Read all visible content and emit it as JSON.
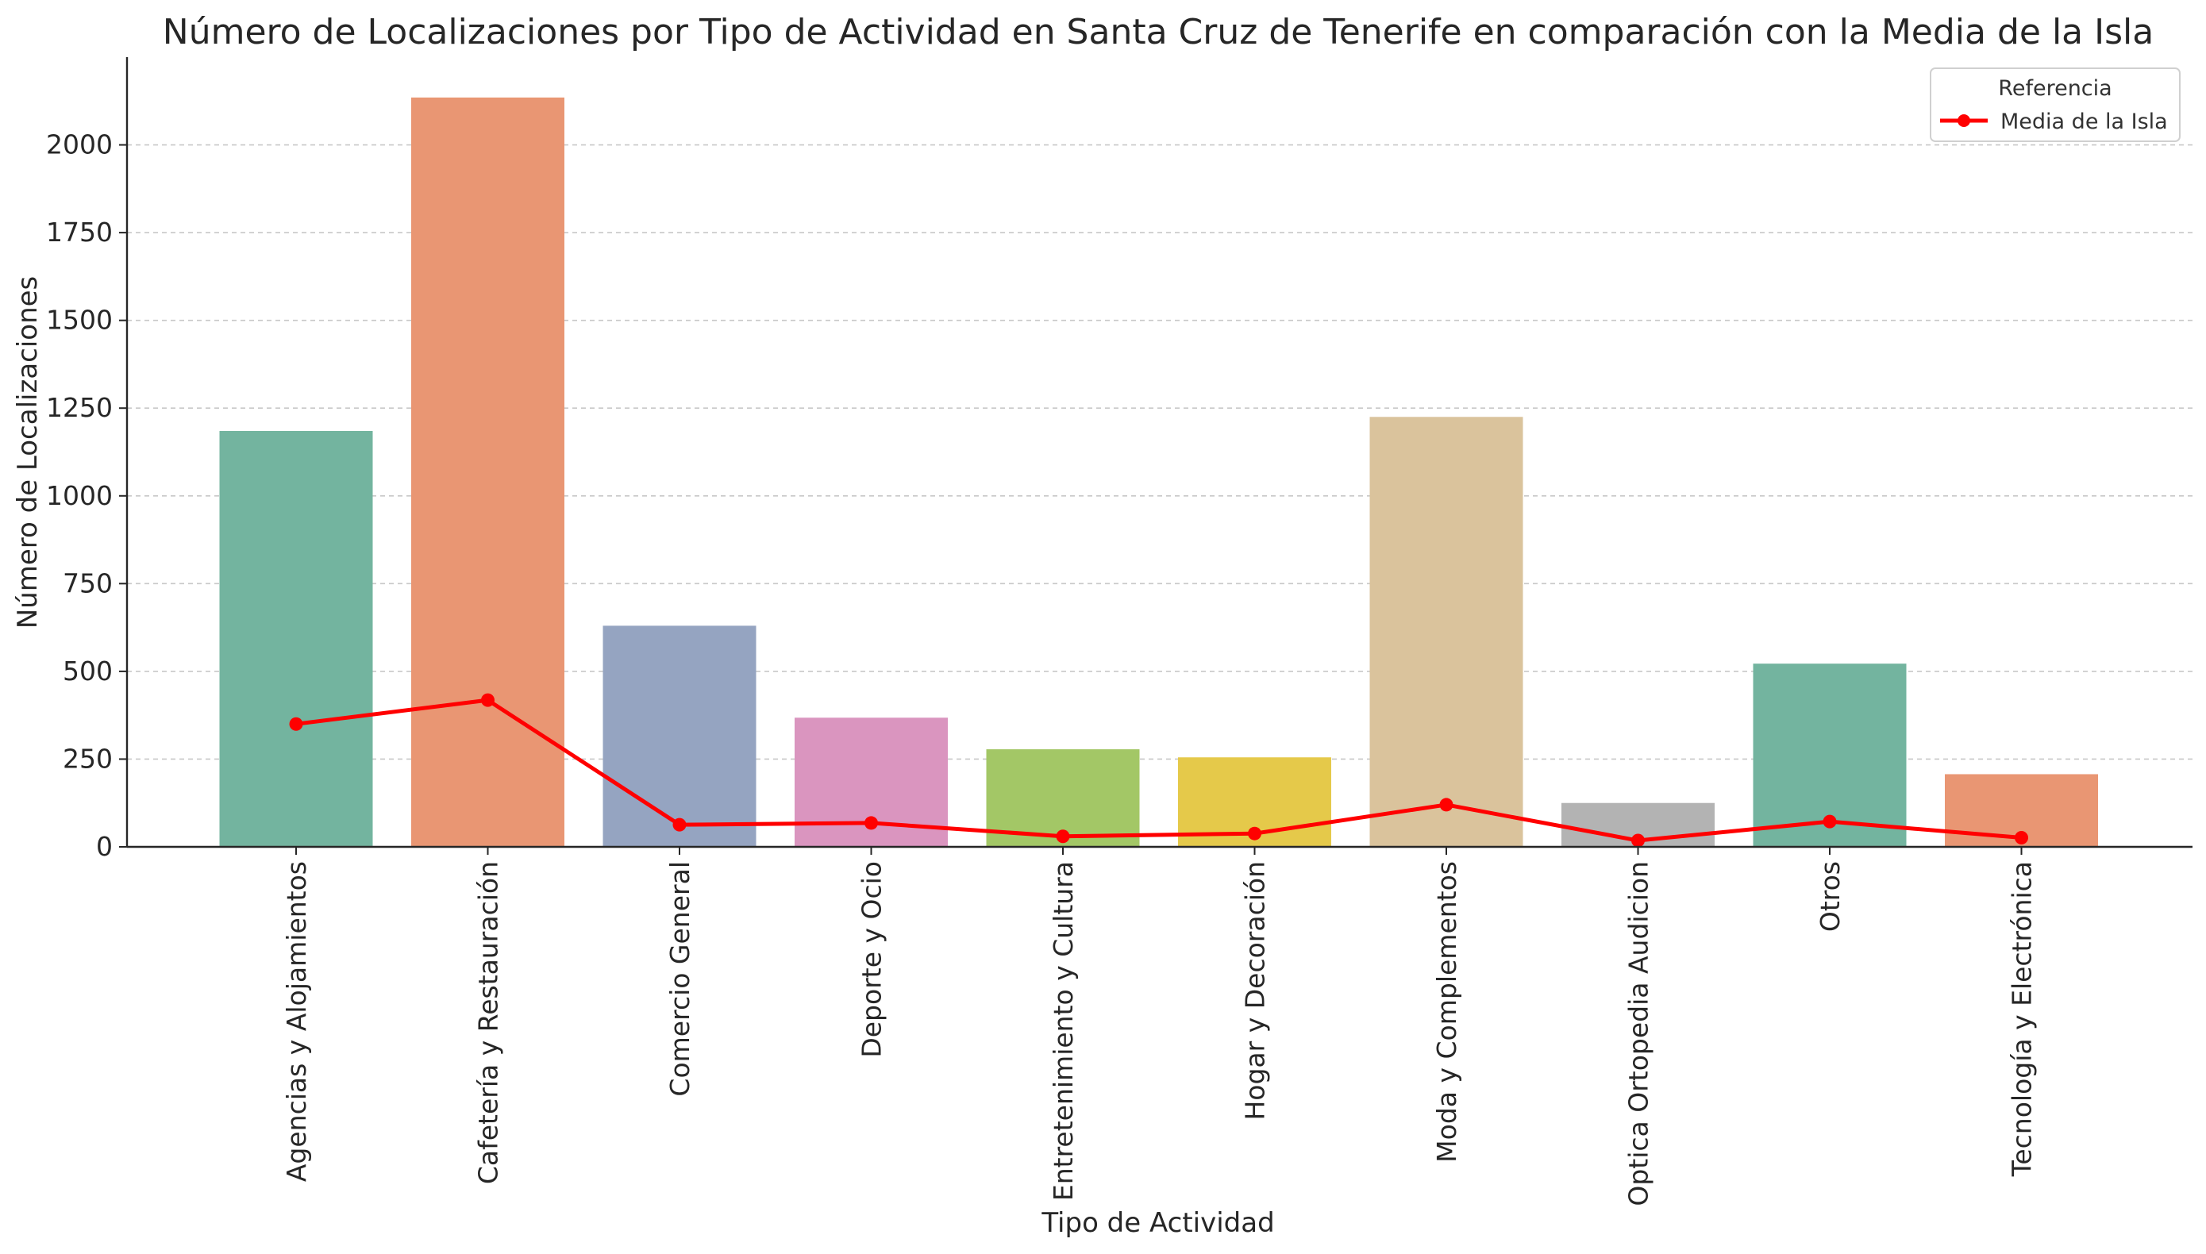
{
  "chart_data": {
    "type": "bar",
    "title": "Número de Localizaciones por Tipo de Actividad en Santa Cruz de Tenerife en comparación con la Media de la Isla",
    "xlabel": "Tipo de Actividad",
    "ylabel": "Número de Localizaciones",
    "ylim": [
      0,
      2250
    ],
    "yticks": [
      0,
      250,
      500,
      750,
      1000,
      1250,
      1500,
      1750,
      2000
    ],
    "grid": "horizontal-dashed",
    "categories": [
      "Agencias y Alojamientos",
      "Cafetería y Restauración",
      "Comercio General",
      "Deporte y Ocio",
      "Entretenimiento y Cultura",
      "Hogar y Decoración",
      "Moda y Complementos",
      "Optica Ortopedia Audicion",
      "Otros",
      "Tecnología y Electrónica"
    ],
    "values": [
      1185,
      2135,
      630,
      368,
      278,
      255,
      1225,
      125,
      522,
      207
    ],
    "bar_colors": [
      "#73b49f",
      "#e99673",
      "#95a4c1",
      "#da95bf",
      "#a3c766",
      "#e5c94a",
      "#dac39c",
      "#b3b3b3",
      "#73b49f",
      "#e99673"
    ],
    "series": [
      {
        "name": "Media de la Isla",
        "type": "line",
        "color": "#ff0000",
        "values": [
          350,
          418,
          63,
          68,
          30,
          38,
          120,
          18,
          72,
          26
        ]
      }
    ],
    "legend": {
      "title": "Referencia",
      "placement": "top-right"
    }
  }
}
